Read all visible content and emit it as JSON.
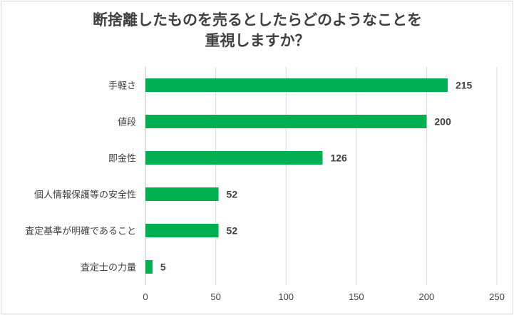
{
  "chart_data": {
    "type": "bar",
    "orientation": "horizontal",
    "title": [
      "断捨離したものを売るとしたらどのようなことを",
      "重視しますか？"
    ],
    "categories": [
      "手軽さ",
      "値段",
      "即金性",
      "個人情報保護等の安全性",
      "査定基準が明確であること",
      "査定士の力量"
    ],
    "values": [
      215,
      200,
      126,
      52,
      52,
      5
    ],
    "xlim": [
      0,
      250
    ],
    "xticks": [
      0,
      50,
      100,
      150,
      200,
      250
    ],
    "grid": true,
    "data_labels": true,
    "legend": "none",
    "bar_color": "#00b050"
  }
}
